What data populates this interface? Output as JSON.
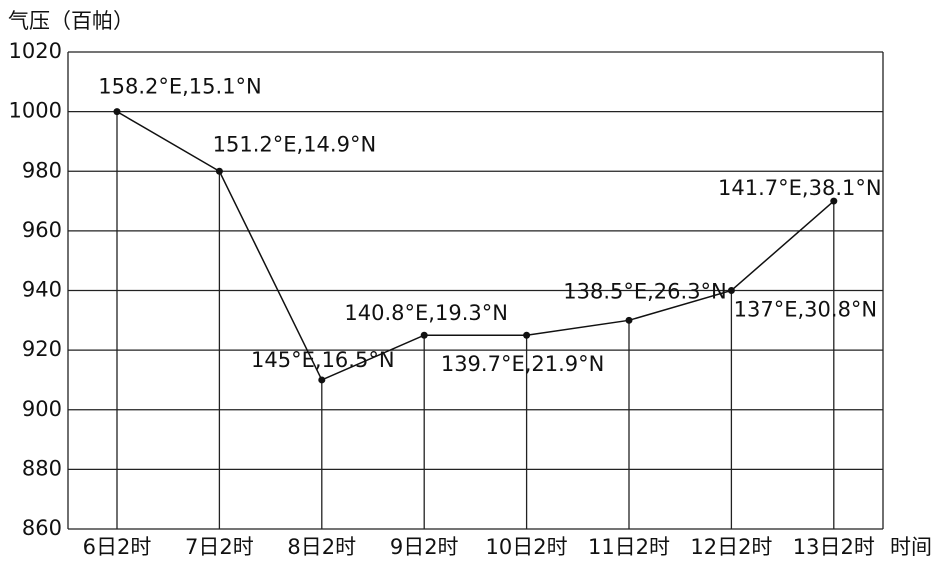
{
  "chart_data": {
    "type": "line",
    "y_axis_label": "气压（百帕）",
    "x_axis_label": "时间",
    "categories": [
      "6日2时",
      "7日2时",
      "8日2时",
      "9日2时",
      "10日2时",
      "11日2时",
      "12日2时",
      "13日2时"
    ],
    "series": [
      {
        "name": "气压",
        "color": "#111111",
        "values": [
          1000,
          980,
          910,
          925,
          925,
          930,
          940,
          970
        ]
      }
    ],
    "point_labels": [
      "158.2°E,15.1°N",
      "151.2°E,14.9°N",
      "145°E,16.5°N",
      "140.8°E,19.3°N",
      "139.7°E,21.9°N",
      "138.5°E,26.3°N",
      "137°E,30.8°N",
      "141.7°E,38.1°N"
    ],
    "ylim": [
      860,
      1020
    ],
    "yticks": [
      860,
      880,
      900,
      920,
      940,
      960,
      980,
      1000,
      1020
    ],
    "grid": true
  }
}
